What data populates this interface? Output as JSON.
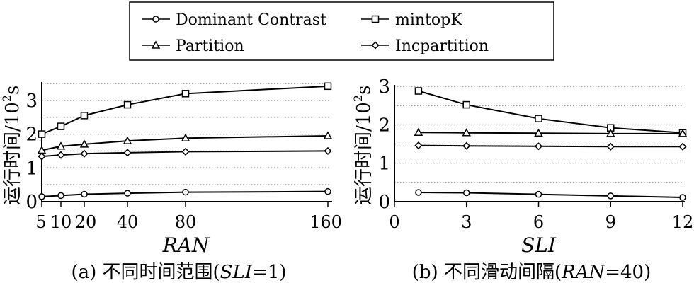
{
  "legend": [
    {
      "name": "Dominant Contrast",
      "marker": "circle"
    },
    {
      "name": "mintopK",
      "marker": "square"
    },
    {
      "name": "Partition",
      "marker": "triangle"
    },
    {
      "name": "Incpartition",
      "marker": "diamond"
    }
  ],
  "chart_data": [
    {
      "type": "line",
      "title": "(a) 不同时间范围(SLI=1)",
      "caption_prefix": "(a) 不同时间范围(",
      "caption_italic": "SLI",
      "caption_suffix": "=1)",
      "xlabel": "RAN",
      "ylabel": "运行时间/10²s",
      "ylabel_main": "运行时间/10",
      "ylabel_sup": "2",
      "ylabel_unit": "s",
      "x": [
        5,
        10,
        20,
        40,
        80,
        160
      ],
      "xtick_labels": [
        "5",
        "10",
        "20",
        "40",
        "80",
        "160"
      ],
      "ylim": [
        0,
        3.5
      ],
      "yticks": [
        0,
        1,
        2,
        3
      ],
      "grid": "horizontal dotted every 0.5",
      "series": [
        {
          "name": "Dominant Contrast",
          "values": [
            0.15,
            0.18,
            0.22,
            0.25,
            0.28,
            0.3
          ]
        },
        {
          "name": "mintopK",
          "values": [
            2.0,
            2.23,
            2.55,
            2.87,
            3.2,
            3.42
          ]
        },
        {
          "name": "Partition",
          "values": [
            1.52,
            1.64,
            1.7,
            1.8,
            1.88,
            1.95
          ]
        },
        {
          "name": "Incpartition",
          "values": [
            1.34,
            1.38,
            1.42,
            1.45,
            1.48,
            1.5
          ]
        }
      ]
    },
    {
      "type": "line",
      "title": "(b) 不同滑动间隔(RAN=40)",
      "caption_prefix": "(b) 不同滑动间隔(",
      "caption_italic": "RAN",
      "caption_suffix": "=40)",
      "xlabel": "SLI",
      "ylabel": "运行时间/10²s",
      "ylabel_main": "运行时间/10",
      "ylabel_sup": "2",
      "ylabel_unit": "s",
      "x": [
        1,
        3,
        6,
        9,
        12
      ],
      "xlim": [
        0,
        12
      ],
      "xticks": [
        0,
        3,
        6,
        9,
        12
      ],
      "ylim": [
        0,
        3
      ],
      "yticks": [
        0,
        1,
        2,
        3
      ],
      "grid": "horizontal dotted every 0.5",
      "series": [
        {
          "name": "Dominant Contrast",
          "values": [
            0.24,
            0.23,
            0.19,
            0.15,
            0.11
          ]
        },
        {
          "name": "mintopK",
          "values": [
            2.88,
            2.52,
            2.16,
            1.92,
            1.79
          ]
        },
        {
          "name": "Partition",
          "values": [
            1.8,
            1.79,
            1.78,
            1.77,
            1.77
          ]
        },
        {
          "name": "Incpartition",
          "values": [
            1.46,
            1.45,
            1.44,
            1.43,
            1.43
          ]
        }
      ]
    }
  ]
}
